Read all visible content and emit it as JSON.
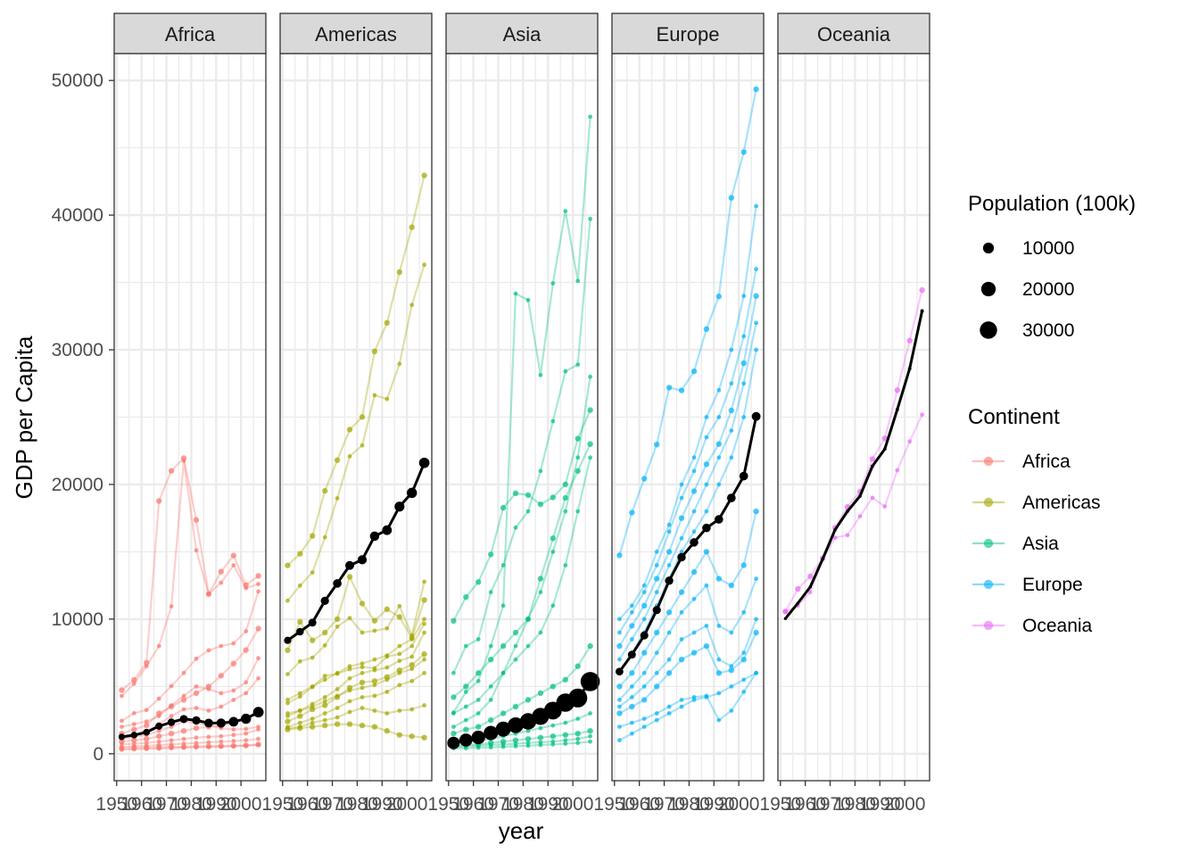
{
  "chart_data": {
    "type": "line",
    "facets": [
      "Africa",
      "Americas",
      "Asia",
      "Europe",
      "Oceania"
    ],
    "xlabel": "year",
    "ylabel": "GDP per Capita",
    "x_ticks": [
      1950,
      1960,
      1970,
      1980,
      1990,
      2000
    ],
    "x_tick_labels": [
      "1950",
      "1960",
      "1970",
      "1980",
      "1990",
      "2000"
    ],
    "y_ticks": [
      0,
      10000,
      20000,
      30000,
      40000,
      50000
    ],
    "y_tick_labels": [
      "0",
      "10000",
      "20000",
      "30000",
      "40000",
      "50000"
    ],
    "ylim": [
      -2000,
      52000
    ],
    "xlim": [
      1949,
      2010
    ],
    "grid": true,
    "years": [
      1952,
      1957,
      1962,
      1967,
      1972,
      1977,
      1982,
      1987,
      1992,
      1997,
      2002,
      2007
    ],
    "colors": {
      "Africa": "#F8766D",
      "Americas": "#A3A500",
      "Asia": "#00BF7D",
      "Europe": "#00B0F6",
      "Oceania": "#E76BF3",
      "continent_mean": "#000000"
    },
    "legend_size": {
      "title": "Population (100k)",
      "values": [
        10000,
        20000,
        30000
      ],
      "labels": [
        "10000",
        "20000",
        "30000"
      ]
    },
    "legend_color": {
      "title": "Continent",
      "labels": [
        "Africa",
        "Americas",
        "Asia",
        "Europe",
        "Oceania"
      ]
    },
    "legend_placement": "right",
    "mean_series": [
      {
        "continent": "Africa",
        "gdp": [
          1253,
          1385,
          1598,
          2050,
          2339,
          2586,
          2482,
          2283,
          2282,
          2379,
          2599,
          3089
        ],
        "pop_100k": [
          2377,
          2647,
          2968,
          3354,
          3829,
          4377,
          5017,
          5748,
          6552,
          7352,
          8338,
          9292
        ]
      },
      {
        "continent": "Americas",
        "gdp": [
          8424,
          9064,
          9741,
          11358,
          12648,
          13987,
          14403,
          16161,
          16605,
          18356,
          19378,
          21603
        ],
        "pop_100k": [
          3450,
          3902,
          4367,
          4861,
          5351,
          5839,
          6326,
          6827,
          7395,
          7967,
          8492,
          8985
        ]
      },
      {
        "continent": "Asia",
        "gdp": [
          806,
          1022,
          1214,
          1543,
          1829,
          2118,
          2406,
          2776,
          3210,
          3798,
          4142,
          5364
        ],
        "pop_100k": [
          13954,
          15502,
          17215,
          19306,
          21871,
          24289,
          26553,
          29018,
          31670,
          34203,
          36520,
          38112
        ]
      },
      {
        "continent": "Europe",
        "gdp": [
          6103,
          7365,
          8784,
          10675,
          12852,
          14598,
          15695,
          16771,
          17406,
          18997,
          20623,
          25054
        ],
        "pop_100k": [
          4183,
          4374,
          4604,
          4819,
          4986,
          5131,
          5224,
          5304,
          5422,
          5540,
          5580,
          5860
        ]
      },
      {
        "continent": "Oceania",
        "gdp": [
          10040,
          11176,
          12383,
          14466,
          16638,
          18010,
          19137,
          21358,
          22626,
          25564,
          28604,
          32885
        ],
        "pop_100k": [
          103,
          113,
          126,
          140,
          157,
          172,
          179,
          196,
          206,
          219,
          230,
          242
        ]
      }
    ],
    "country_series": {
      "Africa": [
        [
          4725,
          5488,
          6757,
          18773,
          21011,
          21952,
          17364,
          11864,
          13522,
          14723,
          12522,
          13206
        ],
        [
          4290,
          5200,
          6500,
          8000,
          10950,
          21745,
          15113,
          11864,
          12700,
          14000,
          12300,
          12600
        ],
        [
          2445,
          3014,
          3247,
          4097,
          5024,
          6001,
          7060,
          7682,
          8000,
          8200,
          9100,
          12057
        ],
        [
          1500,
          1800,
          2100,
          3000,
          3500,
          4000,
          4500,
          5000,
          5800,
          6700,
          7700,
          9300
        ],
        [
          2000,
          2200,
          2400,
          2800,
          3600,
          4300,
          5000,
          4800,
          4500,
          4700,
          5300,
          7100
        ],
        [
          1200,
          1400,
          1700,
          2200,
          2800,
          3300,
          3400,
          3200,
          3500,
          4000,
          4500,
          5600
        ],
        [
          900,
          1000,
          1100,
          1300,
          1500,
          1700,
          1900,
          2000,
          2100,
          2300,
          2600,
          3000
        ],
        [
          700,
          750,
          800,
          900,
          1000,
          1100,
          1200,
          1250,
          1300,
          1400,
          1500,
          1800
        ],
        [
          500,
          550,
          600,
          650,
          700,
          750,
          800,
          850,
          900,
          950,
          1000,
          1100
        ],
        [
          400,
          420,
          450,
          480,
          500,
          520,
          550,
          560,
          580,
          600,
          620,
          700
        ],
        [
          1100,
          1250,
          1400,
          1700,
          2000,
          2400,
          2300,
          2100,
          1900,
          1800,
          1850,
          2000
        ],
        [
          300,
          330,
          360,
          380,
          420,
          450,
          480,
          500,
          520,
          560,
          600,
          650
        ]
      ],
      "Americas": [
        [
          13990,
          14847,
          16173,
          19530,
          21806,
          24073,
          25010,
          29884,
          32003,
          35767,
          39097,
          42952
        ],
        [
          11367,
          12490,
          13462,
          16076,
          18971,
          22090,
          22899,
          26627,
          26343,
          28955,
          33329,
          36319
        ],
        [
          5911,
          6857,
          7134,
          8052,
          9443,
          10079,
          8998,
          9140,
          9308,
          10967,
          8798,
          12779
        ],
        [
          7690,
          9802,
          8423,
          9000,
          10000,
          13143,
          11152,
          9883,
          10733,
          10165,
          8605,
          11416
        ],
        [
          3759,
          4246,
          4957,
          5788,
          5938,
          6281,
          6434,
          6360,
          7217,
          7414,
          8000,
          9648
        ],
        [
          2800,
          3200,
          3700,
          4200,
          4800,
          5600,
          6000,
          6200,
          6400,
          6900,
          7200,
          9000
        ],
        [
          2400,
          2800,
          3300,
          3600,
          4200,
          4900,
          5300,
          5400,
          5700,
          6200,
          6600,
          7400
        ],
        [
          2000,
          2300,
          2600,
          3000,
          3400,
          3900,
          4200,
          4300,
          4600,
          5100,
          5400,
          6000
        ],
        [
          1900,
          2000,
          2300,
          2500,
          2700,
          3100,
          3400,
          3200,
          3000,
          3200,
          3300,
          3600
        ],
        [
          1800,
          1900,
          2000,
          2100,
          2200,
          2200,
          2100,
          2000,
          1700,
          1400,
          1300,
          1200
        ],
        [
          3000,
          3200,
          3500,
          3900,
          4300,
          4700,
          4900,
          5100,
          5500,
          6000,
          6300,
          7000
        ],
        [
          4000,
          4500,
          5000,
          5500,
          6000,
          6500,
          6700,
          7000,
          7300,
          8000,
          8500,
          10000
        ]
      ],
      "Asia": [
        [
          9867,
          11635,
          12753,
          14805,
          18269,
          19340,
          19211,
          18525,
          19035,
          20005,
          23404,
          25523
        ],
        [
          3054,
          4600,
          5400,
          8000,
          11000,
          34167,
          33693,
          28118,
          34932,
          40301,
          35110,
          47307
        ],
        [
          6000,
          8000,
          8500,
          12000,
          14000,
          16800,
          18000,
          21000,
          24700,
          28400,
          28900,
          39725
        ],
        [
          4200,
          5000,
          6000,
          7000,
          8000,
          9000,
          10000,
          13000,
          16000,
          19000,
          21000,
          23000
        ],
        [
          3000,
          3500,
          4000,
          5000,
          6000,
          7000,
          8000,
          9000,
          11000,
          14000,
          18000,
          22000
        ],
        [
          2000,
          2500,
          3000,
          4000,
          6000,
          8000,
          10000,
          12000,
          15000,
          18000,
          22000,
          28000
        ],
        [
          1500,
          1800,
          2000,
          2500,
          3000,
          3500,
          4000,
          4500,
          5000,
          5500,
          6500,
          8000
        ],
        [
          1000,
          1200,
          1400,
          1600,
          1900,
          2200,
          2500,
          2800,
          3200,
          3600,
          4000,
          5000
        ],
        [
          800,
          900,
          1000,
          1100,
          1300,
          1500,
          1700,
          1900,
          2100,
          2300,
          2600,
          3000
        ],
        [
          600,
          650,
          700,
          800,
          900,
          1000,
          1100,
          1200,
          1300,
          1400,
          1500,
          1700
        ],
        [
          500,
          550,
          600,
          650,
          700,
          750,
          800,
          850,
          900,
          1000,
          1100,
          1300
        ],
        [
          400,
          420,
          450,
          480,
          520,
          560,
          600,
          650,
          700,
          750,
          800,
          900
        ]
      ],
      "Europe": [
        [
          14734,
          17909,
          20431,
          22966,
          27195,
          26982,
          28398,
          31541,
          33965,
          41283,
          44684,
          49357
        ],
        [
          10000,
          11000,
          12500,
          15000,
          17000,
          20000,
          22000,
          25000,
          27000,
          30000,
          34000,
          40676
        ],
        [
          9000,
          10500,
          12000,
          14000,
          16500,
          19000,
          21000,
          23500,
          25000,
          27500,
          31000,
          36000
        ],
        [
          8000,
          9500,
          11000,
          13000,
          15000,
          17500,
          19500,
          21500,
          23000,
          25500,
          29000,
          34000
        ],
        [
          7000,
          8500,
          10000,
          12000,
          14000,
          16000,
          18000,
          20000,
          22000,
          24000,
          27500,
          32000
        ],
        [
          6000,
          7500,
          9000,
          11000,
          13000,
          15000,
          16500,
          18000,
          20000,
          22000,
          25000,
          30000
        ],
        [
          5000,
          6000,
          7500,
          9000,
          10500,
          12000,
          13500,
          15000,
          13000,
          12500,
          14000,
          18000
        ],
        [
          4000,
          5000,
          6000,
          7500,
          9000,
          10500,
          11500,
          12500,
          9500,
          9000,
          10500,
          13000
        ],
        [
          3500,
          4200,
          5000,
          6000,
          7000,
          8500,
          9000,
          9500,
          7000,
          6500,
          7500,
          10000
        ],
        [
          3000,
          3500,
          4000,
          5000,
          6000,
          7000,
          7500,
          8000,
          6000,
          6200,
          7000,
          9000
        ],
        [
          2000,
          2300,
          2600,
          3000,
          3500,
          4000,
          4200,
          4300,
          2500,
          3200,
          4600,
          6000
        ],
        [
          1000,
          1500,
          2000,
          2500,
          3000,
          3500,
          4000,
          4200,
          4500,
          5000,
          5500,
          6000
        ]
      ],
      "Oceania": [
        [
          10557,
          12247,
          13176,
          14526,
          16789,
          18334,
          19477,
          21889,
          23425,
          26998,
          30688,
          34435
        ],
        [
          10557,
          11000,
          12000,
          14463,
          16046,
          16234,
          17632,
          19007,
          18363,
          21050,
          23190,
          25185
        ]
      ]
    }
  }
}
